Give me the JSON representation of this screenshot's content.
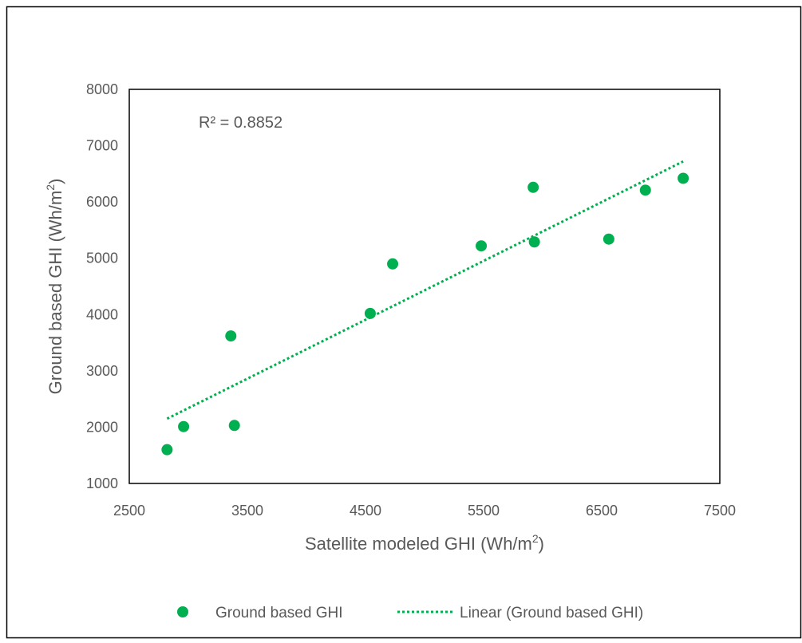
{
  "chart_data": {
    "type": "scatter",
    "xlabel": "Satellite modeled GHI (Wh/m",
    "xlabel_sup": "2",
    "xlabel_end": ")",
    "ylabel": "Ground based GHI (Wh/m",
    "ylabel_sup": "2",
    "ylabel_end": ")",
    "xlim": [
      2500,
      7500
    ],
    "ylim": [
      1000,
      8000
    ],
    "x_ticks": [
      "2500",
      "3500",
      "4500",
      "5500",
      "6500",
      "7500"
    ],
    "y_ticks": [
      "1000",
      "2000",
      "3000",
      "4000",
      "5000",
      "6000",
      "7000",
      "8000"
    ],
    "grid": false,
    "legend_position": "bottom",
    "annotation": "R² = 0.8852",
    "series": [
      {
        "name": "Ground based GHI",
        "color": "#00b050",
        "points": [
          {
            "x": 2820,
            "y": 1600
          },
          {
            "x": 2960,
            "y": 2010
          },
          {
            "x": 3360,
            "y": 3620
          },
          {
            "x": 3390,
            "y": 2030
          },
          {
            "x": 4540,
            "y": 4020
          },
          {
            "x": 4730,
            "y": 4900
          },
          {
            "x": 5480,
            "y": 5220
          },
          {
            "x": 5920,
            "y": 6260
          },
          {
            "x": 5930,
            "y": 5290
          },
          {
            "x": 6560,
            "y": 5340
          },
          {
            "x": 6870,
            "y": 6210
          },
          {
            "x": 7190,
            "y": 6420
          }
        ]
      }
    ],
    "trendline": {
      "name": "Linear (Ground based GHI)",
      "color": "#00b050",
      "x_start": 2820,
      "y_start": 2150,
      "x_end": 7190,
      "y_end": 6720
    }
  }
}
